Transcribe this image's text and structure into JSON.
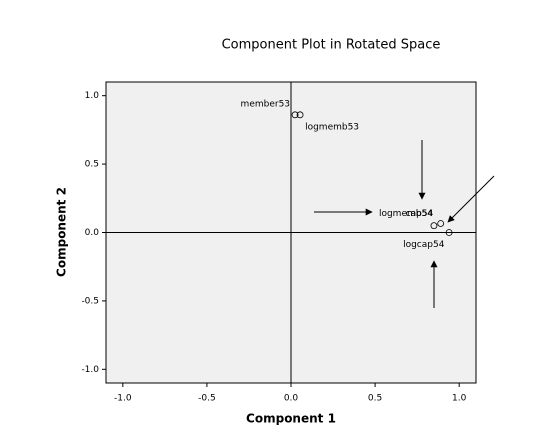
{
  "chart_data": {
    "type": "scatter",
    "title": "Component Plot in Rotated Space",
    "x_label": "Component 1",
    "y_label": "Component 2",
    "xlim": [
      -1.1,
      1.1
    ],
    "ylim": [
      -1.1,
      1.1
    ],
    "xticks": [
      {
        "value": -1,
        "label": "-1.0"
      },
      {
        "value": -0.5,
        "label": "-0.5"
      },
      {
        "value": 0,
        "label": "0.0"
      },
      {
        "value": 0.5,
        "label": "0.5"
      },
      {
        "value": 1,
        "label": "1.0"
      }
    ],
    "yticks": [
      {
        "value": -1,
        "label": "-1.0"
      },
      {
        "value": -0.5,
        "label": "-0.5"
      },
      {
        "value": 0,
        "label": "0.0"
      },
      {
        "value": 0.5,
        "label": "0.5"
      },
      {
        "value": 1,
        "label": "1.0"
      }
    ],
    "points": [
      {
        "label": "member53",
        "x": 0.024,
        "y": 0.86
      },
      {
        "label": "logmemb53",
        "x": 0.054,
        "y": 0.86
      },
      {
        "label": "logmemb54",
        "x": 0.85,
        "y": 0.05
      },
      {
        "label": "cap54",
        "x": 0.89,
        "y": 0.066
      },
      {
        "label": "logcap54",
        "x": 0.94,
        "y": 0.0
      }
    ]
  }
}
